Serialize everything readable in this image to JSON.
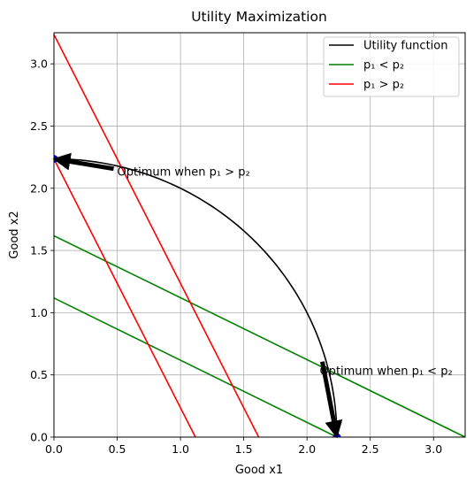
{
  "chart_data": {
    "type": "line",
    "title": "Utility Maximization",
    "xlabel": "Good x1",
    "ylabel": "Good x2",
    "xlim": [
      0,
      3.25
    ],
    "ylim": [
      0,
      3.25
    ],
    "xticks": [
      "0.0",
      "0.5",
      "1.0",
      "1.5",
      "2.0",
      "2.5",
      "3.0"
    ],
    "yticks": [
      "0.0",
      "0.5",
      "1.0",
      "1.5",
      "2.0",
      "2.5",
      "3.0"
    ],
    "grid": true,
    "legend_position": "top-right",
    "legend": [
      {
        "label": "Utility function",
        "color": "#000000"
      },
      {
        "label": "p₁ < p₂",
        "color": "#008000"
      },
      {
        "label": "p₁ > p₂",
        "color": "#ff0000"
      }
    ],
    "series": [
      {
        "name": "Utility function",
        "color": "#000000",
        "kind": "quarter-circle",
        "radius": 2.236
      },
      {
        "name": "p₁ < p₂",
        "color": "#008000",
        "segments": [
          {
            "x": [
              0,
              3.25
            ],
            "y": [
              1.618,
              0.0
            ]
          },
          {
            "x": [
              0,
              2.236
            ],
            "y": [
              1.118,
              0.0
            ]
          }
        ]
      },
      {
        "name": "p₁ > p₂",
        "color": "#ff0000",
        "segments": [
          {
            "x": [
              0,
              1.618
            ],
            "y": [
              3.236,
              0.0
            ]
          },
          {
            "x": [
              0,
              1.118
            ],
            "y": [
              2.236,
              0.0
            ]
          }
        ]
      }
    ],
    "points": [
      {
        "x": 0.0,
        "y": 2.236,
        "color": "#0000ff"
      },
      {
        "x": 2.236,
        "y": 0.0,
        "color": "#0000ff"
      }
    ],
    "annotations": [
      {
        "text": "Optimum when p₁ > p₂",
        "text_at": [
          0.5,
          2.1
        ],
        "arrow_to": [
          0.0,
          2.236
        ]
      },
      {
        "text": "Optimum when p₁ < p₂",
        "text_at": [
          2.1,
          0.5
        ],
        "arrow_to": [
          2.236,
          0.0
        ]
      }
    ]
  }
}
